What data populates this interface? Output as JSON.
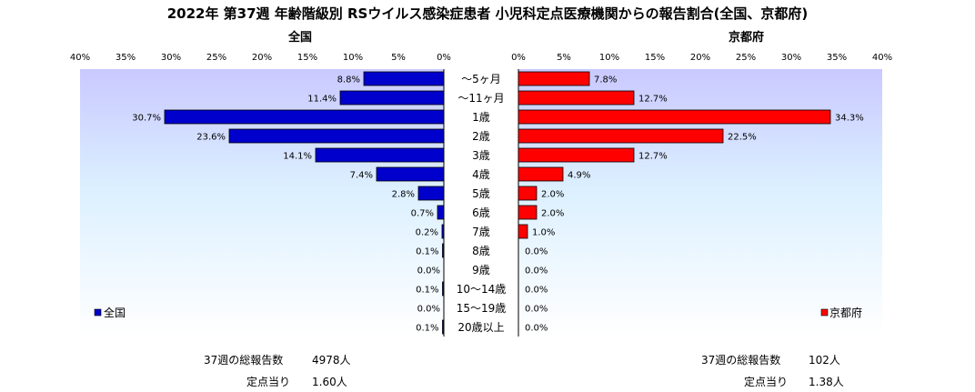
{
  "title": "2022年 第37週 年齢階級別 RSウイルス感染症患者 小児科定点医療機関からの報告割合(全国、京都府)",
  "left_subtitle": "全国",
  "right_subtitle": "京都府",
  "chart_data": {
    "type": "bar",
    "orientation": "horizontal-butterfly",
    "categories": [
      "～5ヶ月",
      "～11ヶ月",
      "1歳",
      "2歳",
      "3歳",
      "4歳",
      "5歳",
      "6歳",
      "7歳",
      "8歳",
      "9歳",
      "10～14歳",
      "15～19歳",
      "20歳以上"
    ],
    "series": [
      {
        "name": "全国",
        "color": "#0000cc",
        "values": [
          8.8,
          11.4,
          30.7,
          23.6,
          14.1,
          7.4,
          2.8,
          0.7,
          0.2,
          0.1,
          0.0,
          0.1,
          0.0,
          0.1
        ],
        "labels": [
          "8.8%",
          "11.4%",
          "30.7%",
          "23.6%",
          "14.1%",
          "7.4%",
          "2.8%",
          "0.7%",
          "0.2%",
          "0.1%",
          "0.0%",
          "0.1%",
          "0.0%",
          "0.1%"
        ]
      },
      {
        "name": "京都府",
        "color": "#ff0000",
        "values": [
          7.8,
          12.7,
          34.3,
          22.5,
          12.7,
          4.9,
          2.0,
          2.0,
          1.0,
          0.0,
          0.0,
          0.0,
          0.0,
          0.0
        ],
        "labels": [
          "7.8%",
          "12.7%",
          "34.3%",
          "22.5%",
          "12.7%",
          "4.9%",
          "2.0%",
          "2.0%",
          "1.0%",
          "0.0%",
          "0.0%",
          "0.0%",
          "0.0%",
          "0.0%"
        ]
      }
    ],
    "xlim": [
      0,
      40
    ],
    "left_ticks": [
      "40%",
      "35%",
      "30%",
      "25%",
      "20%",
      "15%",
      "10%",
      "5%",
      "0%"
    ],
    "right_ticks": [
      "0%",
      "5%",
      "10%",
      "15%",
      "20%",
      "25%",
      "30%",
      "35%",
      "40%"
    ],
    "legend": [
      "全国",
      "京都府"
    ]
  },
  "footer": {
    "left_reports_label": "37週の総報告数",
    "left_reports_value": "4978人",
    "left_per_label": "定点当り",
    "left_per_value": "1.60人",
    "right_reports_label": "37週の総報告数",
    "right_reports_value": "102人",
    "right_per_label": "定点当り",
    "right_per_value": "1.38人"
  }
}
